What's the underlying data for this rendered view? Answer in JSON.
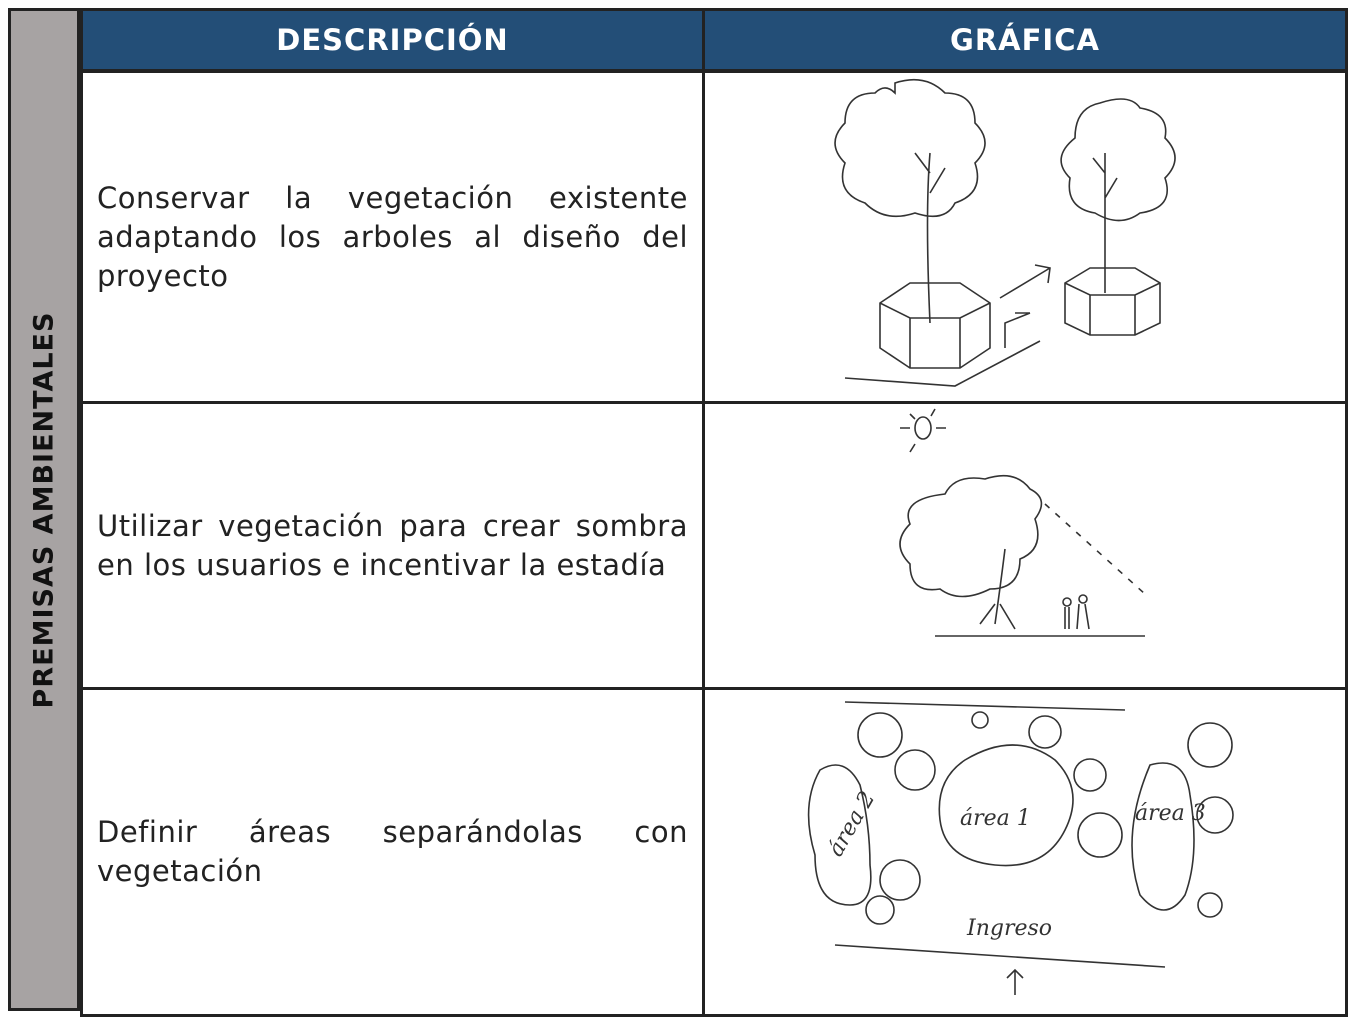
{
  "side_label": "PREMISAS AMBIENTALES",
  "table": {
    "headers": [
      "DESCRIPCIÓN",
      "GRÁFICA"
    ],
    "rows": [
      {
        "description": "Conservar la vegetación existente adaptando los arboles al diseño del proyecto"
      },
      {
        "description": "Utilizar vegetación para crear sombra en los usuarios e incentivar la estadía"
      },
      {
        "description": "Definir áreas separándolas con vegetación",
        "sketch_labels": [
          "área 2",
          "área 1",
          "área 3",
          "Ingreso"
        ]
      }
    ]
  }
}
